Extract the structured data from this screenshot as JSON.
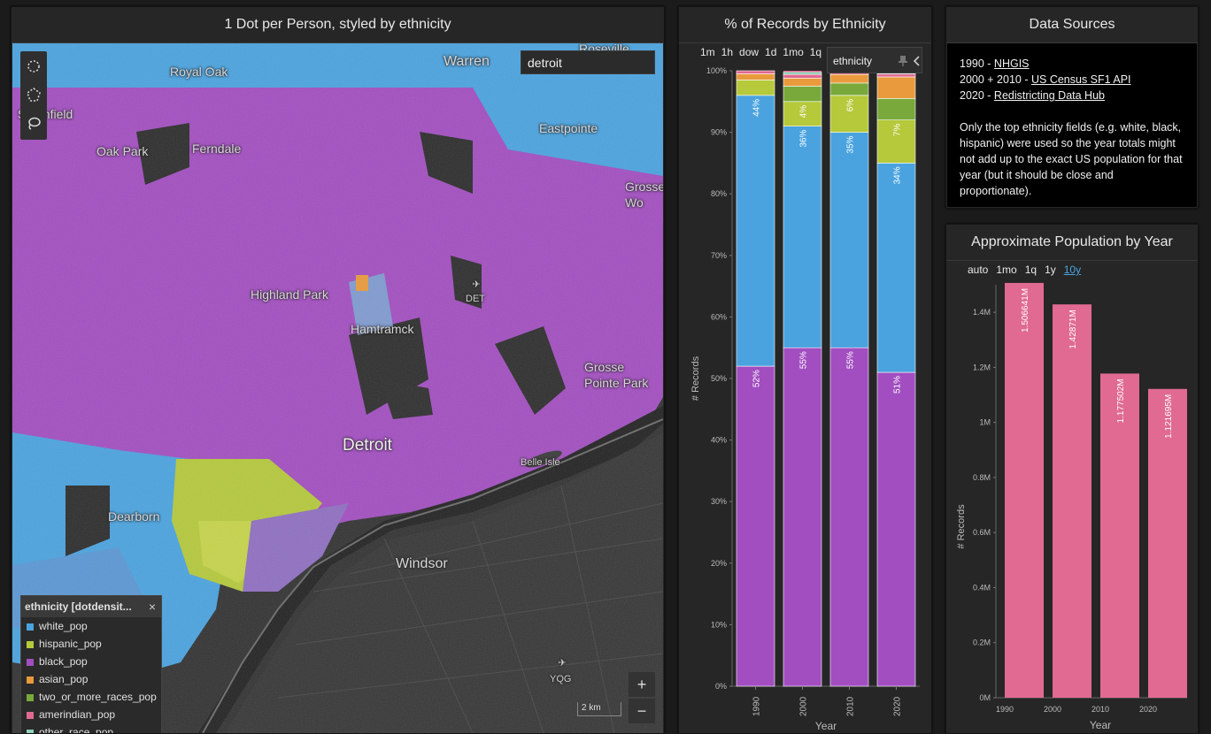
{
  "map_panel": {
    "title": "1 Dot per Person, styled by ethnicity",
    "search_value": "detroit",
    "labels": {
      "royal_oak": "Royal Oak",
      "warren": "Warren",
      "roseville": "Roseville",
      "southfield": "Southfield",
      "oak_park": "Oak Park",
      "ferndale": "Ferndale",
      "eastpointe": "Eastpointe",
      "grosse_woods": "Grosse Wo",
      "highland_park": "Highland Park",
      "det": "DET",
      "hamtramck": "Hamtramck",
      "grosse_pointe_park": "Grosse Pointe Park",
      "detroit": "Detroit",
      "belle_isle": "Belle Isle",
      "dearborn": "Dearborn",
      "windsor": "Windsor",
      "yqg": "YQG"
    },
    "scale_text": "2 km",
    "zoom_in": "+",
    "zoom_out": "−",
    "legend": {
      "title": "ethnicity [dotdensit...",
      "close": "×",
      "items": [
        {
          "label": "white_pop",
          "color": "#4aa3df"
        },
        {
          "label": "hispanic_pop",
          "color": "#b5c93b"
        },
        {
          "label": "black_pop",
          "color": "#a24ec0"
        },
        {
          "label": "asian_pop",
          "color": "#e89a3c"
        },
        {
          "label": "two_or_more_races_pop",
          "color": "#78a93a"
        },
        {
          "label": "amerindian_pop",
          "color": "#e06a92"
        },
        {
          "label": "other_race_pop",
          "color": "#8ed1b7"
        }
      ]
    }
  },
  "ethnicity_panel": {
    "title": "% of Records by Ethnicity",
    "time_tabs": [
      "1m",
      "1h",
      "dow",
      "1d",
      "1mo",
      "1q"
    ],
    "pill_label": "ethnicity",
    "pin_icon": "pin-icon",
    "collapse_icon": "chevron-left-icon"
  },
  "sources_panel": {
    "title": "Data Sources",
    "line1_prefix": "1990 - ",
    "line1_link": "NHGIS",
    "line2_prefix": "2000 + 2010 - ",
    "line2_link": "US Census SF1 API",
    "line3_prefix": "2020 - ",
    "line3_link": "Redistricting Data Hub",
    "note": "Only the top ethnicity fields (e.g. white, black, hispanic) were used so the year totals might not add up to the exact US population for that year (but it should be close and proportionate)."
  },
  "population_panel": {
    "title": "Approximate Population by Year",
    "time_tabs": [
      "auto",
      "1mo",
      "1q",
      "1y",
      "10y"
    ],
    "selected_tab": "10y"
  },
  "chart_data": [
    {
      "type": "bar",
      "stacked": true,
      "percent": true,
      "title": "% of Records by Ethnicity",
      "xlabel": "Year",
      "ylabel": "# Records",
      "categories": [
        "1990",
        "2000",
        "2010",
        "2020"
      ],
      "y_ticks": [
        "0%",
        "10%",
        "20%",
        "30%",
        "40%",
        "50%",
        "60%",
        "70%",
        "80%",
        "90%",
        "100%"
      ],
      "ylim": [
        0,
        100
      ],
      "series": [
        {
          "name": "black_pop",
          "color": "#a24ec0",
          "values": [
            52,
            55,
            55,
            51
          ],
          "labels": [
            "52%",
            "55%",
            "55%",
            "51%"
          ]
        },
        {
          "name": "white_pop",
          "color": "#4aa3df",
          "values": [
            44,
            36,
            35,
            34
          ],
          "labels": [
            "44%",
            "36%",
            "35%",
            "34%"
          ]
        },
        {
          "name": "hispanic_pop",
          "color": "#b5c93b",
          "values": [
            2.5,
            4,
            6,
            7
          ],
          "labels": [
            "",
            "4%",
            "6%",
            "7%"
          ]
        },
        {
          "name": "two_or_more_races_pop",
          "color": "#78a93a",
          "values": [
            0,
            2.5,
            2,
            3.5
          ],
          "labels": []
        },
        {
          "name": "asian_pop",
          "color": "#e89a3c",
          "values": [
            1,
            1.3,
            1.4,
            3.5
          ],
          "labels": []
        },
        {
          "name": "amerindian_pop",
          "color": "#e06a92",
          "values": [
            0.5,
            0.6,
            0.5,
            0.5
          ],
          "labels": []
        },
        {
          "name": "other_race_pop",
          "color": "#8ed1b7",
          "values": [
            0,
            0.4,
            0.1,
            0.3
          ],
          "labels": []
        }
      ]
    },
    {
      "type": "bar",
      "title": "Approximate Population by Year",
      "xlabel": "Year",
      "ylabel": "# Records",
      "categories": [
        "1990",
        "2000",
        "2010",
        "2020"
      ],
      "values": [
        1506641,
        1428710,
        1177502,
        1121695
      ],
      "value_labels": [
        "1.506641M",
        "1.42871M",
        "1.177502M",
        "1.121695M"
      ],
      "y_ticks": [
        "0M",
        "0.2M",
        "0.4M",
        "0.6M",
        "0.8M",
        "1M",
        "1.2M",
        "1.4M"
      ],
      "ylim": [
        0,
        1500000
      ],
      "color": "#e06a92"
    }
  ]
}
